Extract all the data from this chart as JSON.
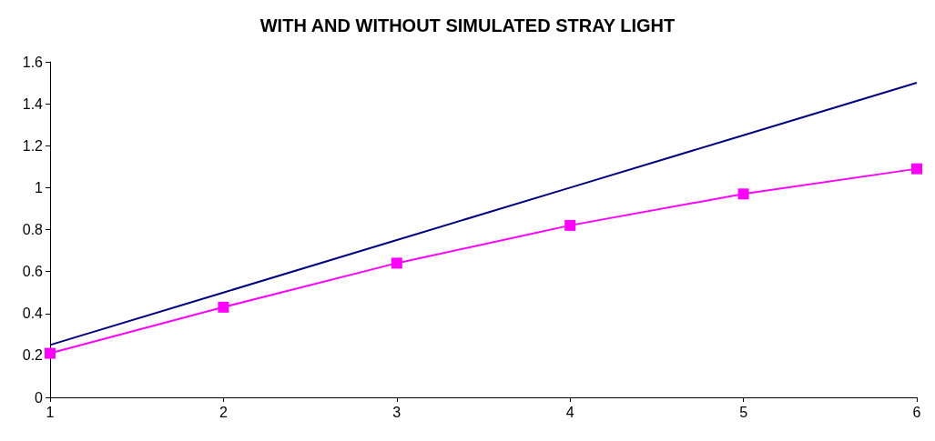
{
  "chart_data": {
    "type": "line",
    "title": "WITH AND WITHOUT SIMULATED STRAY LIGHT",
    "x": [
      1,
      2,
      3,
      4,
      5,
      6
    ],
    "series": [
      {
        "color": "#000080",
        "marker": "none",
        "values": [
          0.25,
          0.5,
          0.75,
          1.0,
          1.25,
          1.5
        ]
      },
      {
        "color": "#ff00ff",
        "marker": "square",
        "values": [
          0.21,
          0.43,
          0.64,
          0.82,
          0.97,
          1.09
        ]
      }
    ],
    "xlim": [
      1,
      6
    ],
    "xticks": [
      1,
      2,
      3,
      4,
      5,
      6
    ],
    "ylim": [
      0,
      1.6
    ],
    "yticks": [
      0,
      0.2,
      0.4,
      0.6,
      0.8,
      1,
      1.2,
      1.4,
      1.6
    ],
    "grid": false
  }
}
